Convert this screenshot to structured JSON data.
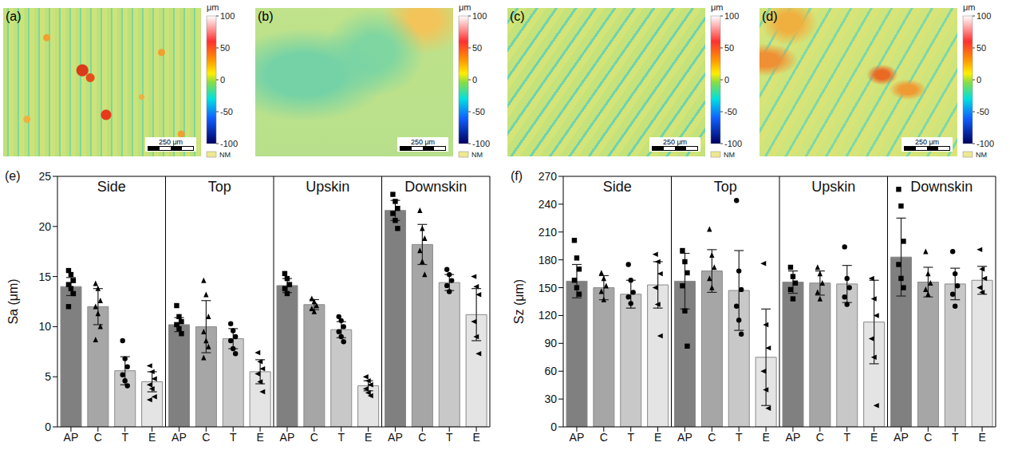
{
  "panels": [
    {
      "label": "(a)"
    },
    {
      "label": "(b)"
    },
    {
      "label": "(c)"
    },
    {
      "label": "(d)"
    }
  ],
  "colorbar": {
    "unit": "μm",
    "range": [
      -100,
      100
    ],
    "ticks": [
      100,
      50,
      0,
      -50,
      -100
    ]
  },
  "scale_bar": "250 μm",
  "nm": "NM",
  "chart_data": [
    {
      "type": "bar",
      "label": "(e)",
      "y_label": "Sa (μm)",
      "categories": [
        "AP",
        "C",
        "T",
        "E"
      ],
      "colors": [
        "#808080",
        "#a6a6a6",
        "#c8c8c8",
        "#e4e4e4"
      ],
      "ylim": [
        0,
        25
      ],
      "yticks": [
        0,
        5,
        10,
        15,
        20,
        25
      ],
      "series": [
        {
          "name": "Side",
          "values": [
            14,
            12,
            5.6,
            4.5
          ],
          "errors": [
            0.9,
            1.8,
            1.4,
            1.0
          ],
          "points": [
            [
              15.6,
              15.2,
              14.6,
              14.2,
              13.8,
              13.3,
              12.0
            ],
            [
              14.3,
              13.8,
              12.6,
              12.0,
              11.3,
              10.0,
              8.7
            ],
            [
              8.6,
              6.8,
              6.0,
              5.2,
              4.6,
              4.1
            ],
            [
              6.1,
              5.5,
              4.8,
              4.2,
              3.8,
              3.0,
              2.7
            ]
          ]
        },
        {
          "name": "Top",
          "values": [
            10.2,
            10,
            8.8,
            5.5
          ],
          "errors": [
            0.7,
            2.6,
            1.0,
            1.2
          ],
          "points": [
            [
              12.1,
              11.0,
              10.5,
              10.2,
              9.8,
              9.3
            ],
            [
              14.6,
              13.2,
              11.0,
              9.5,
              8.6,
              8.0,
              6.9
            ],
            [
              10.3,
              9.6,
              9.0,
              8.6,
              7.8,
              7.3
            ],
            [
              7.4,
              6.5,
              5.8,
              5.3,
              4.5,
              3.5
            ]
          ]
        },
        {
          "name": "Upskin",
          "values": [
            14.1,
            12.2,
            9.7,
            4.1
          ],
          "errors": [
            0.7,
            0.5,
            0.8,
            0.5
          ],
          "points": [
            [
              15.3,
              14.8,
              14.2,
              13.8,
              13.3
            ],
            [
              12.8,
              12.5,
              12.1,
              11.8,
              11.5
            ],
            [
              11.0,
              10.6,
              10.0,
              9.5,
              9.0,
              8.5
            ],
            [
              5.0,
              4.6,
              4.2,
              3.8,
              3.4,
              3.1
            ]
          ]
        },
        {
          "name": "Downskin",
          "values": [
            21.6,
            18.2,
            14.4,
            11.2
          ],
          "errors": [
            1.0,
            2.0,
            0.8,
            2.6
          ],
          "points": [
            [
              23.2,
              22.5,
              21.8,
              21.3,
              20.6,
              19.8
            ],
            [
              21.6,
              19.8,
              18.8,
              17.6,
              16.5,
              15.2
            ],
            [
              15.7,
              15.2,
              14.6,
              14.1,
              13.5
            ],
            [
              15.0,
              14.0,
              13.2,
              10.5,
              9.0,
              7.3
            ]
          ]
        }
      ]
    },
    {
      "type": "bar",
      "label": "(f)",
      "y_label": "Sz (μm)",
      "categories": [
        "AP",
        "C",
        "T",
        "E"
      ],
      "colors": [
        "#808080",
        "#a6a6a6",
        "#c8c8c8",
        "#e4e4e4"
      ],
      "ylim": [
        0,
        270
      ],
      "yticks": [
        0,
        30,
        60,
        90,
        120,
        150,
        180,
        210,
        240,
        270
      ],
      "series": [
        {
          "name": "Side",
          "values": [
            157,
            150,
            143,
            153
          ],
          "errors": [
            18,
            13,
            15,
            25
          ],
          "points": [
            [
              201,
              182,
              170,
              158,
              150,
              143
            ],
            [
              166,
              160,
              152,
              146,
              137
            ],
            [
              175,
              158,
              145,
              140,
              133
            ],
            [
              186,
              178,
              165,
              150,
              132,
              98
            ]
          ]
        },
        {
          "name": "Top",
          "values": [
            157,
            168,
            147,
            75
          ],
          "errors": [
            30,
            23,
            43,
            52
          ],
          "points": [
            [
              190,
              178,
              166,
              152,
              125,
              87
            ],
            [
              213,
              185,
              172,
              160,
              150
            ],
            [
              244,
              168,
              148,
              130,
              115,
              100
            ],
            [
              176,
              110,
              85,
              60,
              40,
              20
            ]
          ]
        },
        {
          "name": "Upskin",
          "values": [
            156,
            155,
            154,
            113
          ],
          "errors": [
            12,
            13,
            20,
            45
          ],
          "points": [
            [
              172,
              162,
              155,
              148,
              138
            ],
            [
              172,
              165,
              155,
              145,
              138
            ],
            [
              194,
              160,
              150,
              140,
              132
            ],
            [
              160,
              138,
              120,
              95,
              75,
              23
            ]
          ]
        },
        {
          "name": "Downskin",
          "values": [
            183,
            156,
            154,
            158
          ],
          "errors": [
            42,
            16,
            17,
            15
          ],
          "points": [
            [
              256,
              238,
              200,
              175,
              160,
              150
            ],
            [
              189,
              165,
              155,
              148,
              143
            ],
            [
              189,
              165,
              152,
              143,
              130
            ],
            [
              191,
              170,
              160,
              150,
              145
            ]
          ]
        }
      ]
    }
  ]
}
